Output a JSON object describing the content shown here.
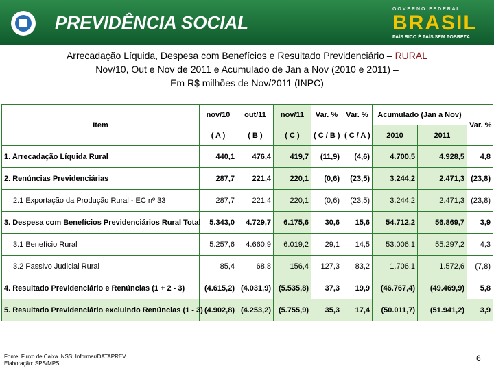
{
  "header": {
    "brand": "PREVIDÊNCIA SOCIAL",
    "gov": "G O V E R N O   F E D E R A L",
    "brasil": "BRASIL",
    "slogan": "PAÍS RICO É PAÍS SEM POBREZA"
  },
  "title": {
    "line1": "Arrecadação Líquida, Despesa com Benefícios e Resultado Previdenciário – ",
    "line1_emph": "RURAL",
    "line2": "Nov/10, Out e Nov de 2011 e Acumulado de Jan a Nov (2010 e 2011) –",
    "line3": "Em R$ milhões de Nov/2011 (INPC)"
  },
  "table": {
    "head1": [
      "Item",
      "nov/10",
      "out/11",
      "nov/11",
      "Var. %",
      "Var. %",
      "Acumulado (Jan a Nov)",
      "Var. %"
    ],
    "head2": [
      "( A )",
      "( B )",
      "( C )",
      "( C / B )",
      "( C / A )",
      "2010",
      "2011"
    ],
    "rows": [
      [
        "1. Arrecadação Líquida Rural",
        "440,1",
        "476,4",
        "419,7",
        "(11,9)",
        "(4,6)",
        "4.700,5",
        "4.928,5",
        "4,8"
      ],
      [
        "2. Renúncias Previdenciárias",
        "287,7",
        "221,4",
        "220,1",
        "(0,6)",
        "(23,5)",
        "3.244,2",
        "2.471,3",
        "(23,8)"
      ],
      [
        "2.1 Exportação da Produção Rural - EC nº 33",
        "287,7",
        "221,4",
        "220,1",
        "(0,6)",
        "(23,5)",
        "3.244,2",
        "2.471,3",
        "(23,8)"
      ],
      [
        "3. Despesa com Benefícios Previdenciários Rural Total",
        "5.343,0",
        "4.729,7",
        "6.175,6",
        "30,6",
        "15,6",
        "54.712,2",
        "56.869,7",
        "3,9"
      ],
      [
        "3.1 Benefício Rural",
        "5.257,6",
        "4.660,9",
        "6.019,2",
        "29,1",
        "14,5",
        "53.006,1",
        "55.297,2",
        "4,3"
      ],
      [
        "3.2 Passivo Judicial Rural",
        "85,4",
        "68,8",
        "156,4",
        "127,3",
        "83,2",
        "1.706,1",
        "1.572,6",
        "(7,8)"
      ],
      [
        "4. Resultado Previdenciário e Renúncias (1 + 2 - 3)",
        "(4.615,2)",
        "(4.031,9)",
        "(5.535,8)",
        "37,3",
        "19,9",
        "(46.767,4)",
        "(49.469,9)",
        "5,8"
      ],
      [
        "5. Resultado Previdenciário excluindo Renúncias (1 - 3)",
        "(4.902,8)",
        "(4.253,2)",
        "(5.755,9)",
        "35,3",
        "17,4",
        "(50.011,7)",
        "(51.941,2)",
        "3,9"
      ]
    ]
  },
  "footer": {
    "source": "Fonte: Fluxo de Caixa INSS; Informar/DATAPREV.",
    "made": "Elaboração: SPS/MPS.",
    "page": "6"
  }
}
